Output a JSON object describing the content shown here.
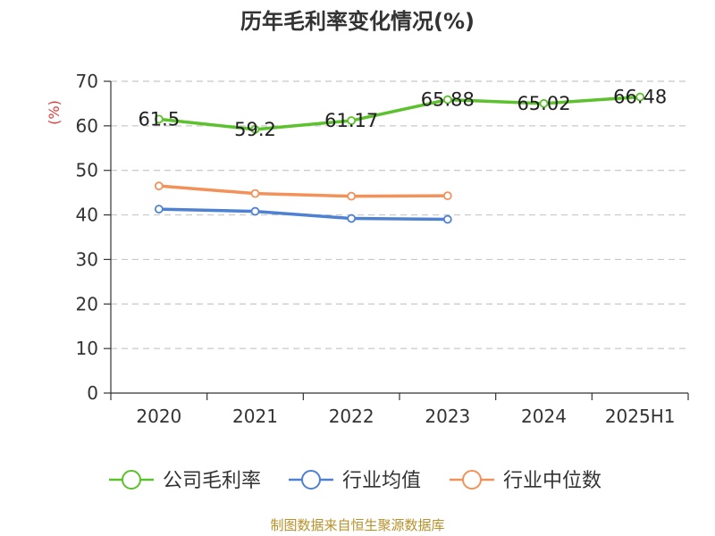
{
  "chart_data": {
    "type": "line",
    "title": "历年毛利率变化情况(%)",
    "ylabel": "(%)",
    "xlabel": "",
    "ylim": [
      0,
      70
    ],
    "yticks": [
      0,
      10,
      20,
      30,
      40,
      50,
      60,
      70
    ],
    "categories": [
      "2020",
      "2021",
      "2022",
      "2023",
      "2024",
      "2025H1"
    ],
    "grid": true,
    "legend_position": "bottom",
    "series": [
      {
        "name": "公司毛利率",
        "color": "#5bc12c",
        "values": [
          61.5,
          59.2,
          61.17,
          65.88,
          65.02,
          66.48
        ],
        "labels": [
          "61.5",
          "59.2",
          "61.17",
          "65.88",
          "65.02",
          "66.48"
        ]
      },
      {
        "name": "行业均值",
        "color": "#4f81d3",
        "values": [
          41.3,
          40.8,
          39.2,
          39.0,
          null,
          null
        ]
      },
      {
        "name": "行业中位数",
        "color": "#f39159",
        "values": [
          46.5,
          44.8,
          44.2,
          44.3,
          null,
          null
        ]
      }
    ]
  },
  "colors": {
    "ylabel": "#e33b3b",
    "axis": "#333333",
    "grid": "#c8c8c8"
  },
  "source": "制图数据来自恒生聚源数据库"
}
